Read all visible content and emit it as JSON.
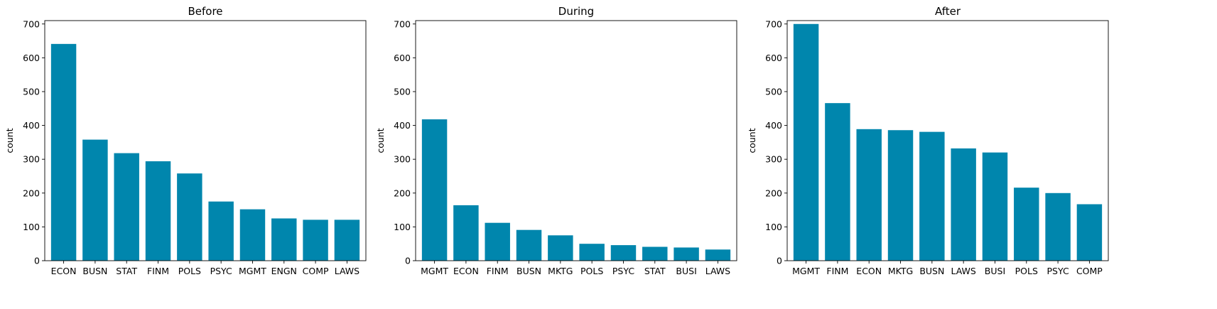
{
  "colors": {
    "bar": "#0086AD",
    "axis": "#000000",
    "background": "#ffffff"
  },
  "chart_data": [
    {
      "type": "bar",
      "title": "Before",
      "xlabel": "",
      "ylabel": "count",
      "ylim": [
        0,
        710
      ],
      "yticks": [
        0,
        100,
        200,
        300,
        400,
        500,
        600,
        700
      ],
      "categories": [
        "ECON",
        "BUSN",
        "STAT",
        "FINM",
        "POLS",
        "PSYC",
        "MGMT",
        "ENGN",
        "COMP",
        "LAWS"
      ],
      "values": [
        641,
        358,
        318,
        294,
        258,
        175,
        152,
        125,
        121,
        121
      ]
    },
    {
      "type": "bar",
      "title": "During",
      "xlabel": "",
      "ylabel": "count",
      "ylim": [
        0,
        710
      ],
      "yticks": [
        0,
        100,
        200,
        300,
        400,
        500,
        600,
        700
      ],
      "categories": [
        "MGMT",
        "ECON",
        "FINM",
        "BUSN",
        "MKTG",
        "POLS",
        "PSYC",
        "STAT",
        "BUSI",
        "LAWS"
      ],
      "values": [
        418,
        164,
        112,
        91,
        75,
        50,
        46,
        41,
        39,
        33
      ]
    },
    {
      "type": "bar",
      "title": "After",
      "xlabel": "",
      "ylabel": "count",
      "ylim": [
        0,
        710
      ],
      "yticks": [
        0,
        100,
        200,
        300,
        400,
        500,
        600,
        700
      ],
      "categories": [
        "MGMT",
        "FINM",
        "ECON",
        "MKTG",
        "BUSN",
        "LAWS",
        "BUSI",
        "POLS",
        "PSYC",
        "COMP"
      ],
      "values": [
        700,
        466,
        389,
        386,
        381,
        332,
        320,
        216,
        200,
        167
      ]
    }
  ]
}
